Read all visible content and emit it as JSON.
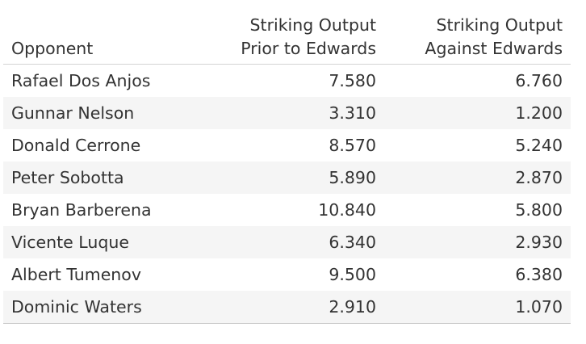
{
  "chart_data": {
    "type": "table",
    "columns": [
      "Opponent",
      "Striking Output Prior to Edwards",
      "Striking Output Against Edwards"
    ],
    "header": {
      "opponent": "Opponent",
      "prior_line1": "Striking Output",
      "prior_line2": "Prior to Edwards",
      "against_line1": "Striking Output",
      "against_line2": "Against Edwards"
    },
    "rows": [
      {
        "opponent": "Rafael Dos Anjos",
        "prior": "7.580",
        "against": "6.760"
      },
      {
        "opponent": "Gunnar Nelson",
        "prior": "3.310",
        "against": "1.200"
      },
      {
        "opponent": "Donald Cerrone",
        "prior": "8.570",
        "against": "5.240"
      },
      {
        "opponent": "Peter Sobotta",
        "prior": "5.890",
        "against": "2.870"
      },
      {
        "opponent": "Bryan Barberena",
        "prior": "10.840",
        "against": "5.800"
      },
      {
        "opponent": "Vicente Luque",
        "prior": "6.340",
        "against": "2.930"
      },
      {
        "opponent": "Albert Tumenov",
        "prior": "9.500",
        "against": "6.380"
      },
      {
        "opponent": "Dominic Waters",
        "prior": "2.910",
        "against": "1.070"
      }
    ],
    "colors": {
      "text": "#333333",
      "stripe": "#f5f5f5",
      "rule": "#d4d4d4"
    }
  }
}
